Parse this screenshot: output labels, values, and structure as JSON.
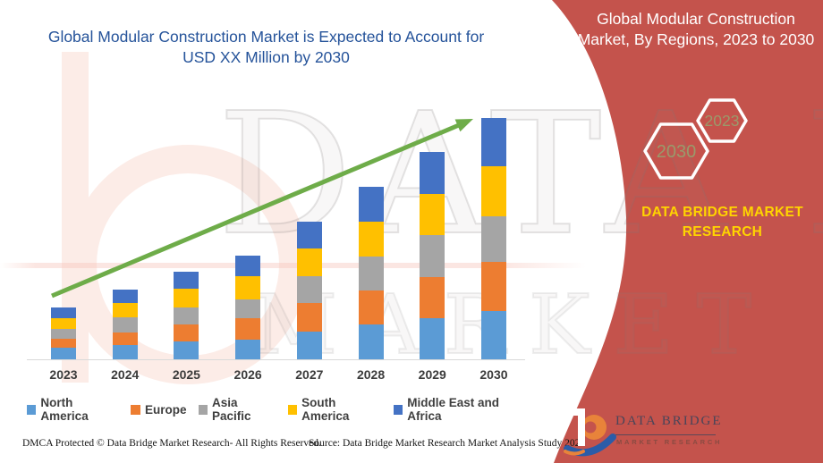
{
  "header": {
    "title_line1": "Global Modular Construction Market is Expected to Account for",
    "title_line2": "USD XX Million by 2030"
  },
  "banner": {
    "color": "#C4534C",
    "title_line1": "Global Modular Construction",
    "title_line2": "Market, By Regions, 2023 to 2030",
    "hexagon_large_label": "2030",
    "hexagon_small_label": "2023",
    "hex_label_color": "#9A9A6B",
    "brand_line1": "DATA BRIDGE MARKET",
    "brand_line2": "RESEARCH",
    "brand_color": "#FFD400"
  },
  "watermark": {
    "line1": "DATA BRIDGE",
    "line2": "MARKET RESEARCH"
  },
  "chart_data": {
    "type": "bar",
    "stacked": true,
    "title": "Global Modular Construction Market, By Regions, 2023 to 2030",
    "xlabel": "",
    "ylabel": "",
    "value_axis_visible": false,
    "units": "relative (no numeric axis shown in image)",
    "legend_position": "bottom",
    "grid": false,
    "trend_arrow": true,
    "trend_color": "#6EAC49",
    "categories": [
      "2023",
      "2024",
      "2025",
      "2026",
      "2027",
      "2028",
      "2029",
      "2030"
    ],
    "series": [
      {
        "name": "North America",
        "color": "#5B9BD5",
        "values": [
          13,
          16,
          20,
          22,
          31,
          39,
          46,
          54
        ]
      },
      {
        "name": "Europe",
        "color": "#ED7D31",
        "values": [
          10,
          14,
          19,
          24,
          32,
          38,
          46,
          55
        ]
      },
      {
        "name": "Asia Pacific",
        "color": "#A5A5A5",
        "values": [
          11,
          17,
          19,
          21,
          30,
          38,
          47,
          51
        ]
      },
      {
        "name": "South America",
        "color": "#FFC000",
        "values": [
          12,
          16,
          21,
          26,
          31,
          39,
          46,
          56
        ]
      },
      {
        "name": "Middle East and Africa",
        "color": "#4472C4",
        "values": [
          12,
          15,
          19,
          23,
          30,
          39,
          47,
          54
        ]
      }
    ],
    "totals": [
      58,
      78,
      98,
      116,
      154,
      193,
      232,
      270
    ]
  },
  "footer": {
    "left": "DMCA Protected © Data Bridge Market Research- All Rights Reserved.",
    "source": "Source: Data Bridge Market Research Market Analysis Study 2023"
  },
  "logo": {
    "name": "DATA BRIDGE",
    "subtitle": "MARKET RESEARCH"
  }
}
